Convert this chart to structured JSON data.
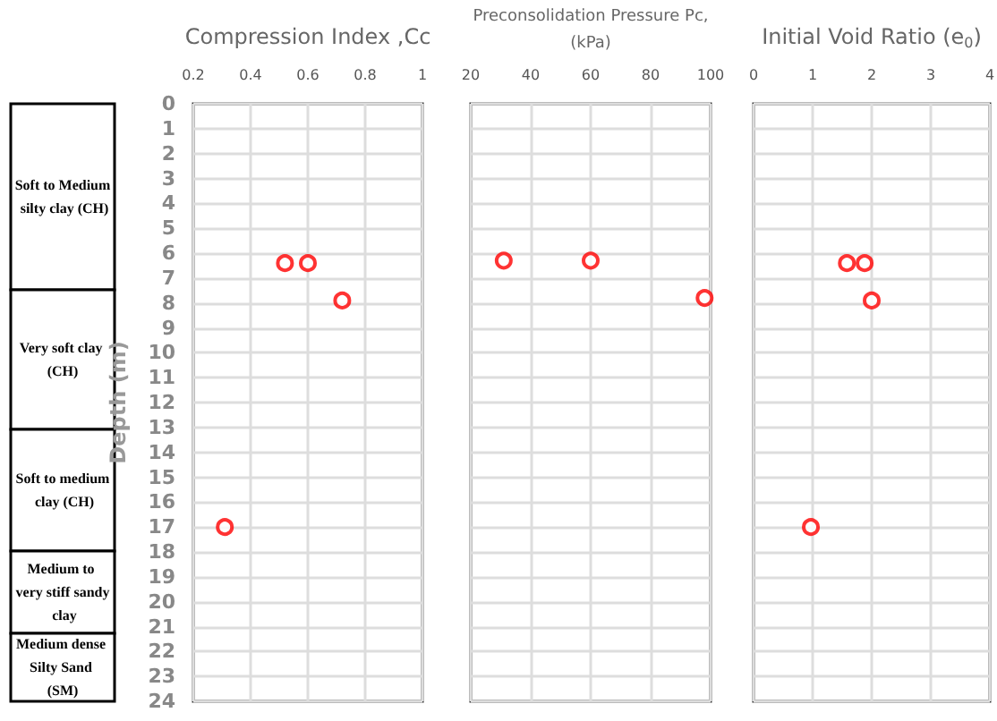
{
  "chart_data": [
    {
      "type": "scatter",
      "xlabel": "Compression Index ,Cc",
      "ylabel": "Depth (m)",
      "series": [
        {
          "color": "#ff0000",
          "x": [
            0.52,
            0.6,
            0.72,
            0.31
          ],
          "values": [
            6.4,
            6.4,
            7.9,
            17
          ]
        }
      ],
      "xlim": [
        0.2,
        1
      ],
      "xticks": [
        0.2,
        0.4,
        0.6,
        0.8,
        1
      ],
      "ylim": [
        24,
        0
      ],
      "yticks": [
        0,
        1,
        2,
        3,
        4,
        5,
        6,
        7,
        8,
        9,
        10,
        11,
        12,
        13,
        14,
        15,
        16,
        17,
        18,
        19,
        20,
        21,
        22,
        23,
        24
      ],
      "grid": true,
      "marker": "circle",
      "annotations": [
        "Soft to Medium silty clay (CH)",
        "Very soft clay (CH)",
        "Soft to medium clay (CH)",
        "Medium to very stiff sandy clay",
        "Medium dense Silty Sand (SM)"
      ]
    },
    {
      "type": "scatter",
      "xlabel": "Preconsolidation Pressure Pc,\n(kPa)",
      "series": [
        {
          "color": "#ff0000",
          "x": [
            31,
            60,
            98
          ],
          "values": [
            6.3,
            6.3,
            7.8
          ]
        }
      ],
      "xlim": [
        20,
        100
      ],
      "xticks": [
        20,
        40,
        60,
        80,
        100
      ],
      "ylim": [
        24,
        0
      ],
      "yticks": [
        0,
        1,
        2,
        3,
        4,
        5,
        6,
        7,
        8,
        9,
        10,
        11,
        12,
        13,
        14,
        15,
        16,
        17,
        18,
        19,
        20,
        21,
        22,
        23,
        24
      ],
      "grid": true,
      "marker": "circle",
      "tick_labels": "x"
    },
    {
      "type": "scatter",
      "xlabel": "Initial Void Ratio (e$_{0}$)",
      "series": [
        {
          "color": "#ff0000",
          "x": [
            1.58,
            1.88,
            2.0,
            0.97
          ],
          "values": [
            6.4,
            6.4,
            7.9,
            17
          ]
        }
      ],
      "xlim": [
        0,
        4
      ],
      "xticks": [
        0,
        1,
        2,
        3,
        4
      ],
      "ylim": [
        24,
        0
      ],
      "yticks": [
        0,
        1,
        2,
        3,
        4,
        5,
        6,
        7,
        8,
        9,
        10,
        11,
        12,
        13,
        14,
        15,
        16,
        17,
        18,
        19,
        20,
        21,
        22,
        23,
        24
      ],
      "grid": true,
      "marker": "circle",
      "tick_labels": "x"
    }
  ]
}
